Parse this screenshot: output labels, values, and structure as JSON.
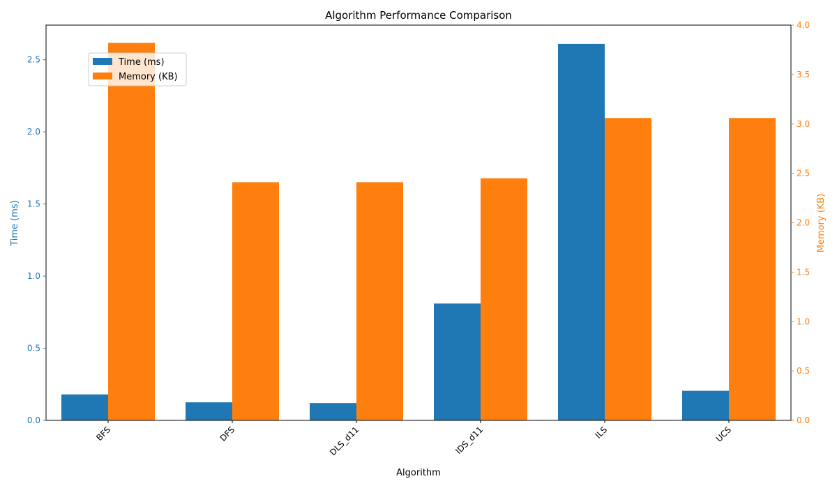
{
  "chart_data": {
    "type": "bar",
    "title": "Algorithm Performance Comparison",
    "xlabel": "Algorithm",
    "categories": [
      "BFS",
      "DFS",
      "DLS_d11",
      "IDS_d11",
      "ILS",
      "UCS"
    ],
    "series": [
      {
        "name": "Time (ms)",
        "axis": "left",
        "color": "#1f77b4",
        "values": [
          0.18,
          0.125,
          0.12,
          0.81,
          2.61,
          0.205
        ]
      },
      {
        "name": "Memory (KB)",
        "axis": "right",
        "color": "#ff7f0e",
        "values": [
          3.82,
          2.41,
          2.41,
          2.45,
          3.06,
          3.06
        ]
      }
    ],
    "y_left": {
      "label": "Time (ms)",
      "color": "#1f77b4",
      "ylim": [
        0,
        2.74
      ],
      "ticks": [
        0.0,
        0.5,
        1.0,
        1.5,
        2.0,
        2.5
      ],
      "tick_labels": [
        "0.0",
        "0.5",
        "1.0",
        "1.5",
        "2.0",
        "2.5"
      ]
    },
    "y_right": {
      "label": "Memory (KB)",
      "color": "#ff7f0e",
      "ylim": [
        0,
        4.0
      ],
      "ticks": [
        0.0,
        0.5,
        1.0,
        1.5,
        2.0,
        2.5,
        3.0,
        3.5,
        4.0
      ],
      "tick_labels": [
        "0.0",
        "0.5",
        "1.0",
        "1.5",
        "2.0",
        "2.5",
        "3.0",
        "3.5",
        "4.0"
      ]
    },
    "legend": {
      "position": "top-left",
      "items": [
        "Time (ms)",
        "Memory (KB)"
      ]
    },
    "grid": false
  }
}
